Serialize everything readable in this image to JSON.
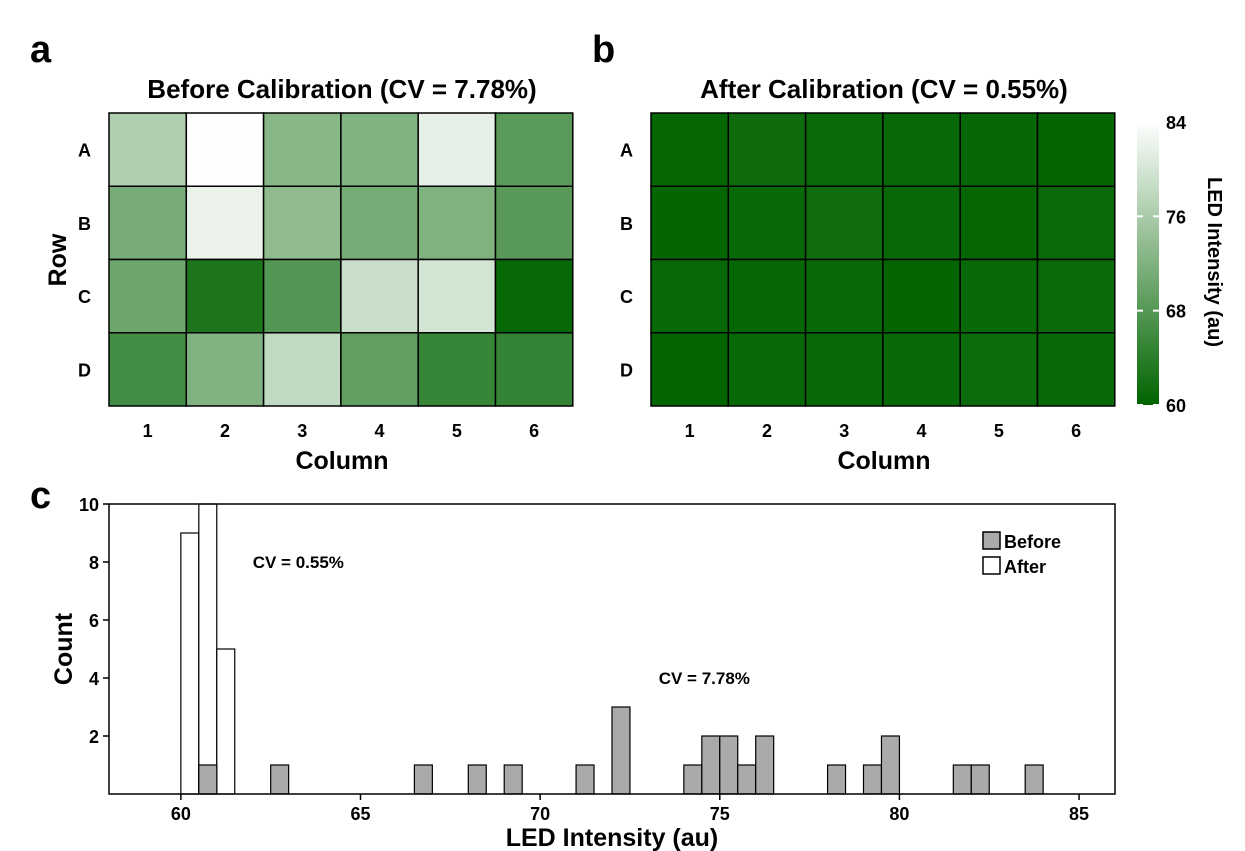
{
  "chart_data": [
    {
      "panel": "a",
      "type": "heatmap",
      "title": "Before Calibration (CV = 7.78%)",
      "xlabel": "Column",
      "ylabel": "Row",
      "columns": [
        "1",
        "2",
        "3",
        "4",
        "5",
        "6"
      ],
      "rows": [
        "A",
        "B",
        "C",
        "D"
      ],
      "values": [
        [
          76.5,
          83.8,
          72.8,
          72.1,
          81.7,
          68.5
        ],
        [
          71.2,
          82.1,
          73.5,
          71.0,
          72.0,
          68.4
        ],
        [
          70.2,
          62.6,
          67.9,
          79.0,
          79.8,
          60.6
        ],
        [
          66.4,
          72.1,
          78.3,
          69.1,
          65.2,
          65.0
        ]
      ]
    },
    {
      "panel": "b",
      "type": "heatmap",
      "title": "After Calibration (CV = 0.55%)",
      "xlabel": "Column",
      "ylabel": "",
      "columns": [
        "1",
        "2",
        "3",
        "4",
        "5",
        "6"
      ],
      "rows": [
        "A",
        "B",
        "C",
        "D"
      ],
      "values": [
        [
          60.4,
          61.3,
          60.9,
          60.7,
          60.5,
          60.3
        ],
        [
          60.3,
          60.8,
          61.4,
          60.8,
          60.4,
          60.9
        ],
        [
          60.6,
          60.5,
          60.7,
          60.2,
          60.8,
          61.0
        ],
        [
          60.2,
          60.6,
          60.7,
          60.8,
          61.1,
          60.8
        ]
      ],
      "colorbar": {
        "label": "LED Intensity (au)",
        "range": [
          60,
          84
        ],
        "ticks": [
          60,
          68,
          76,
          84
        ],
        "color_low": "#006400",
        "color_high": "#ffffff"
      }
    },
    {
      "panel": "c",
      "type": "histogram",
      "xlabel": "LED Intensity (au)",
      "ylabel": "Count",
      "xlim": [
        58,
        86
      ],
      "ylim": [
        0,
        10
      ],
      "xticks": [
        60,
        65,
        70,
        75,
        80,
        85
      ],
      "yticks": [
        2,
        4,
        6,
        8,
        10
      ],
      "bin_width": 0.5,
      "legend_position": "top-right",
      "series": [
        {
          "name": "Before",
          "color": "#aaaaaa",
          "bins": [
            {
              "start": 60.5,
              "count": 1
            },
            {
              "start": 62.5,
              "count": 1
            },
            {
              "start": 66.5,
              "count": 1
            },
            {
              "start": 68.0,
              "count": 1
            },
            {
              "start": 69.0,
              "count": 1
            },
            {
              "start": 71.0,
              "count": 1
            },
            {
              "start": 72.0,
              "count": 3
            },
            {
              "start": 74.0,
              "count": 1
            },
            {
              "start": 74.5,
              "count": 2
            },
            {
              "start": 75.0,
              "count": 2
            },
            {
              "start": 75.5,
              "count": 1
            },
            {
              "start": 76.0,
              "count": 2
            },
            {
              "start": 78.0,
              "count": 1
            },
            {
              "start": 79.0,
              "count": 1
            },
            {
              "start": 79.5,
              "count": 2
            },
            {
              "start": 81.5,
              "count": 1
            },
            {
              "start": 82.0,
              "count": 1
            },
            {
              "start": 83.5,
              "count": 1
            }
          ]
        },
        {
          "name": "After",
          "color": "#ffffff",
          "bins": [
            {
              "start": 60.0,
              "count": 9
            },
            {
              "start": 60.5,
              "count": 10
            },
            {
              "start": 61.0,
              "count": 5
            }
          ]
        }
      ],
      "annotations": [
        {
          "text": "CV = 0.55%",
          "x": 62.0,
          "y": 7.8
        },
        {
          "text": "CV = 7.78%",
          "x": 73.3,
          "y": 3.8
        }
      ]
    }
  ]
}
